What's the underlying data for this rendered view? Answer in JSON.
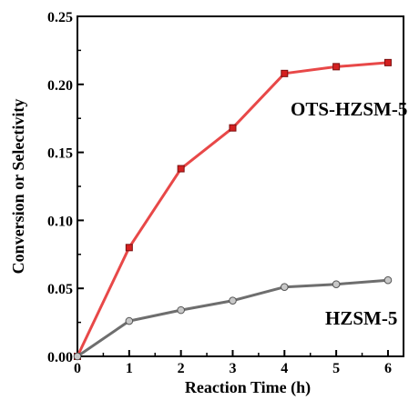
{
  "chart_data": {
    "type": "line",
    "xlabel": "Reaction Time (h)",
    "ylabel": "Conversion or Selectivity",
    "xlim": [
      0,
      6.3
    ],
    "ylim": [
      0,
      0.25
    ],
    "xticks": [
      "0",
      "1",
      "2",
      "3",
      "4",
      "5",
      "6"
    ],
    "yticks": [
      "0.00",
      "0.05",
      "0.10",
      "0.15",
      "0.20",
      "0.25"
    ],
    "grid": false,
    "series": [
      {
        "name": "OTS-HZSM-5",
        "color": "#e84848",
        "marker": "square",
        "marker_color": "#d42020",
        "x": [
          0,
          1,
          2,
          3,
          4,
          5,
          6
        ],
        "values": [
          0.0,
          0.08,
          0.138,
          0.168,
          0.208,
          0.213,
          0.216
        ]
      },
      {
        "name": "HZSM-5",
        "color": "#6e6e6e",
        "marker": "circle",
        "marker_color": "#c8c8c8",
        "x": [
          0,
          1,
          2,
          3,
          4,
          5,
          6
        ],
        "values": [
          0.0,
          0.026,
          0.034,
          0.041,
          0.051,
          0.053,
          0.056
        ]
      }
    ]
  }
}
